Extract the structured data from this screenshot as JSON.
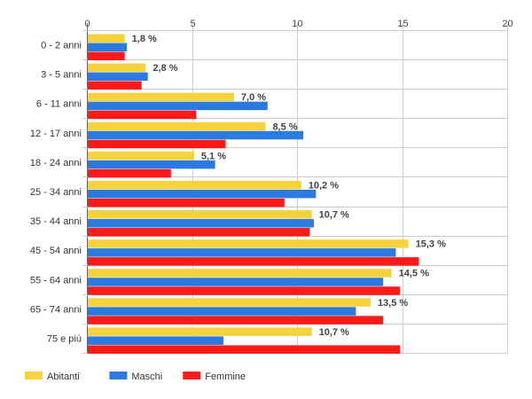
{
  "chart_data": {
    "type": "bar",
    "orientation": "horizontal",
    "categories": [
      "0 - 2 anni",
      "3 - 5 anni",
      "6 - 11 anni",
      "12 - 17 anni",
      "18 - 24 anni",
      "25 - 34 anni",
      "35 - 44 anni",
      "45 - 54 anni",
      "55 - 64 anni",
      "65 - 74 anni",
      "75 e più"
    ],
    "series": [
      {
        "name": "Abitanti",
        "color": "#f6d33c",
        "values": [
          1.8,
          2.8,
          7.0,
          8.5,
          5.1,
          10.2,
          10.7,
          15.3,
          14.5,
          13.5,
          10.7
        ]
      },
      {
        "name": "Maschi",
        "color": "#2a7ae2",
        "values": [
          1.9,
          2.9,
          8.6,
          10.3,
          6.1,
          10.9,
          10.8,
          14.7,
          14.1,
          12.8,
          6.5
        ]
      },
      {
        "name": "Femmine",
        "color": "#ff1a1a",
        "values": [
          1.8,
          2.6,
          5.2,
          6.6,
          4.0,
          9.4,
          10.6,
          15.8,
          14.9,
          14.1,
          14.9
        ]
      }
    ],
    "data_labels": [
      "1,8 %",
      "2,8 %",
      "7,0 %",
      "8,5 %",
      "5,1 %",
      "10,2 %",
      "10,7 %",
      "15,3 %",
      "14,5 %",
      "13,5 %",
      "10,7 %"
    ],
    "xticks": [
      "0",
      "5",
      "10",
      "15",
      "20"
    ],
    "xlim": [
      0,
      20
    ],
    "axis_position": "top",
    "grid": true,
    "legend_position": "bottom-left"
  }
}
